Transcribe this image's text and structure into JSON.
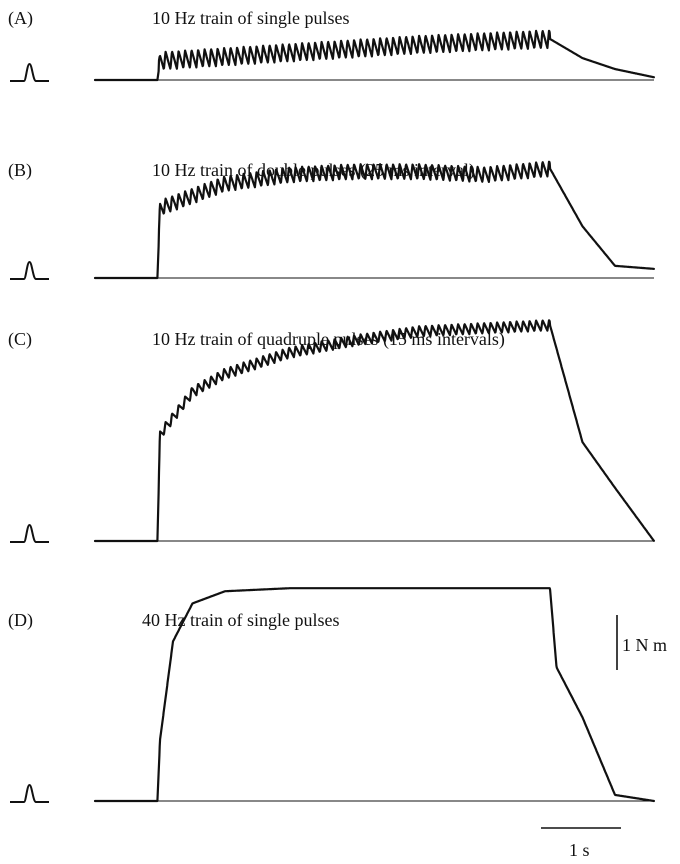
{
  "chart_data": [
    {
      "type": "line",
      "panel_label": "(A)",
      "title": "10 Hz train of single pulses",
      "stimulus": {
        "frequency_hz": 10,
        "pulses_per_burst": 1,
        "interval_ms": null
      },
      "x_units": "s",
      "y_units": "N m",
      "series": [
        {
          "x": [
            0,
            0.96,
            1.0,
            2.0,
            3.0,
            4.0,
            5.0,
            7.0,
            7.5,
            8.0,
            8.6
          ],
          "y": [
            0,
            0,
            0.14,
            0.17,
            0.2,
            0.23,
            0.26,
            0.3,
            0.16,
            0.08,
            0.02
          ]
        }
      ],
      "ripple_amplitude": 0.13
    },
    {
      "type": "line",
      "panel_label": "(B)",
      "title": "10 Hz train of double pulses (25 ms interval)",
      "stimulus": {
        "frequency_hz": 10,
        "pulses_per_burst": 2,
        "interval_ms": 25
      },
      "x_units": "s",
      "y_units": "N m",
      "series": [
        {
          "x": [
            0,
            0.96,
            1.0,
            2.0,
            3.0,
            4.0,
            5.0,
            6.0,
            7.0,
            7.5,
            8.0,
            8.6
          ],
          "y": [
            0,
            0,
            0.46,
            0.62,
            0.68,
            0.7,
            0.7,
            0.68,
            0.72,
            0.34,
            0.08,
            0.06
          ]
        }
      ],
      "ripple_amplitude": 0.1
    },
    {
      "type": "line",
      "panel_label": "(C)",
      "title": "10 Hz train of quadruple pulses (15 ms intervals)",
      "stimulus": {
        "frequency_hz": 10,
        "pulses_per_burst": 4,
        "interval_ms": 15
      },
      "x_units": "s",
      "y_units": "N m",
      "series": [
        {
          "x": [
            0,
            0.96,
            1.0,
            1.5,
            2.0,
            3.0,
            4.0,
            5.0,
            6.0,
            7.0,
            7.5,
            8.0,
            8.6
          ],
          "y": [
            0,
            0,
            0.7,
            0.98,
            1.1,
            1.24,
            1.32,
            1.38,
            1.4,
            1.42,
            0.65,
            0.35,
            0
          ]
        }
      ],
      "ripple_amplitude": 0.07
    },
    {
      "type": "line",
      "panel_label": "(D)",
      "title": "40 Hz train of single pulses",
      "stimulus": {
        "frequency_hz": 40,
        "pulses_per_burst": 1,
        "interval_ms": null
      },
      "x_units": "s",
      "y_units": "N m",
      "series": [
        {
          "x": [
            0,
            0.96,
            1.0,
            1.2,
            1.5,
            2.0,
            3.0,
            5.0,
            7.0,
            7.1,
            7.5,
            8.0,
            8.6
          ],
          "y": [
            0,
            0,
            0.4,
            1.05,
            1.3,
            1.38,
            1.4,
            1.4,
            1.4,
            0.88,
            0.55,
            0.04,
            0
          ]
        }
      ],
      "ripple_amplitude": 0
    }
  ],
  "scale_bars": {
    "force_label": "1 N m",
    "force_value": 1,
    "time_label": "1 s",
    "time_value": 1
  }
}
